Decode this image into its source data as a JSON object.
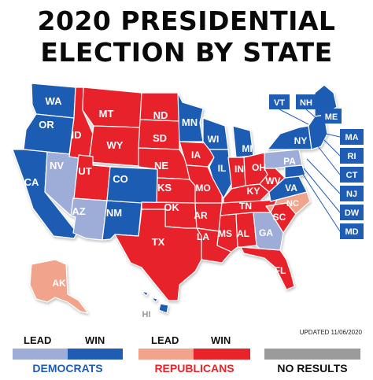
{
  "title_line1": "2020 PRESIDENTIAL",
  "title_line2": "ELECTION BY STATE",
  "colors": {
    "dem_win": "#1f5cb3",
    "dem_lead": "#9dadd8",
    "rep_win": "#e8232a",
    "rep_lead": "#f2a38c",
    "no_results": "#9b9b9b"
  },
  "states": {
    "WA": "WA",
    "OR": "OR",
    "CA": "CA",
    "NV": "NV",
    "ID": "ID",
    "MT": "MT",
    "WY": "WY",
    "UT": "UT",
    "AZ": "AZ",
    "CO": "CO",
    "NM": "NM",
    "ND": "ND",
    "SD": "SD",
    "NE": "NE",
    "KS": "KS",
    "OK": "OK",
    "TX": "TX",
    "MN": "MN",
    "IA": "IA",
    "MO": "MO",
    "AR": "AR",
    "LA": "LA",
    "WI": "WI",
    "IL": "IL",
    "MI": "MI",
    "IN": "IN",
    "OH": "OH",
    "KY": "KY",
    "TN": "TN",
    "MS": "MS",
    "AL": "AL",
    "GA": "GA",
    "FL": "FL",
    "SC": "SC",
    "NC": "NC",
    "VA": "VA",
    "WV": "WV",
    "PA": "PA",
    "NY": "NY",
    "ME": "ME",
    "AK": "AK",
    "HI": "HI",
    "VT": "VT",
    "NH": "NH",
    "MA": "MA",
    "RI": "RI",
    "CT": "CT",
    "NJ": "NJ",
    "DW": "DW",
    "MD": "MD"
  },
  "legend": {
    "dem_lead": "LEAD",
    "dem_win": "WIN",
    "rep_lead": "LEAD",
    "rep_win": "WIN",
    "democrats": "DEMOCRATS",
    "republicans": "REPUBLICANS",
    "no_results": "NO RESULTS",
    "updated": "UPDATED 11/06/2020"
  }
}
